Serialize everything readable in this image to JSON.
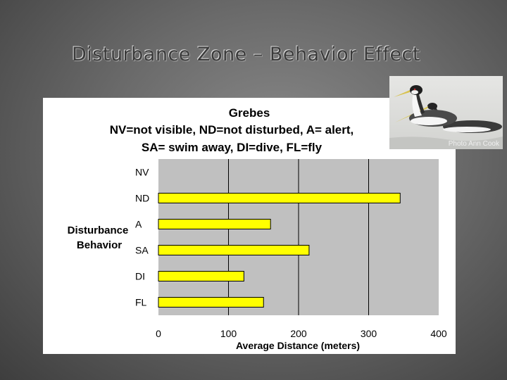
{
  "slide": {
    "title": "Disturbance Zone – Behavior Effect",
    "photo_credit": "Photo Ann Cook"
  },
  "chart_data": {
    "type": "bar",
    "orientation": "horizontal",
    "title": "Grebes",
    "subtitle_lines": [
      "NV=not visible, ND=not disturbed, A= alert,",
      "SA= swim away, DI=dive, FL=fly"
    ],
    "categories": [
      "NV",
      "ND",
      "A",
      "SA",
      "DI",
      "FL"
    ],
    "values": [
      0,
      345,
      160,
      215,
      122,
      150
    ],
    "xlabel": "Average Distance (meters)",
    "ylabel_lines": [
      "Disturbance",
      "Behavior"
    ],
    "xlim": [
      0,
      400
    ],
    "xticks": [
      "0",
      "100",
      "200",
      "300",
      "400"
    ],
    "grid": "vertical",
    "legend": "none",
    "colors": {
      "bar": "#ffff00",
      "bar_outline": "#000000",
      "plot_background": "#c0c0c0",
      "gridline": "#000000"
    }
  }
}
